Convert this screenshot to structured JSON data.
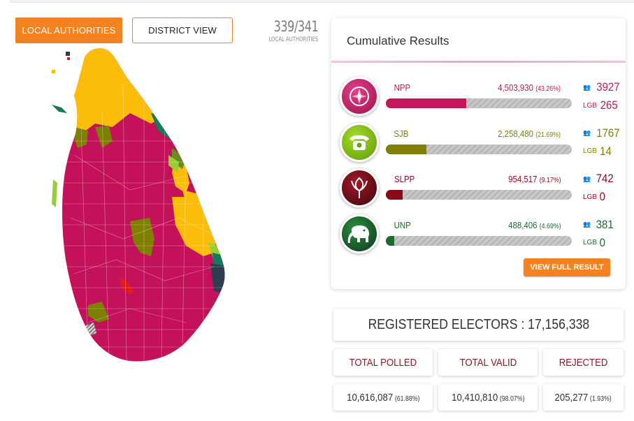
{
  "nav": {
    "local_label": "LOCAL AUTHORITIES",
    "district_label": "DISTRICT VIEW"
  },
  "counter": {
    "value": "339/341",
    "label": "LOCAL AUTHORITIES"
  },
  "card": {
    "title": "Cumulative Results",
    "view_full_label": "VIEW FULL RESULT"
  },
  "parties": [
    {
      "name": "NPP",
      "votes": "4,503,930",
      "pct": "(43.26%)",
      "share": 43.26,
      "members": "3927",
      "lgb_label": "LGB",
      "lgb": "265",
      "color": "#c2185b",
      "icon": "compass-icon"
    },
    {
      "name": "SJB",
      "votes": "2,258,480",
      "pct": "(21.69%)",
      "share": 21.69,
      "members": "1767",
      "lgb_label": "LGB",
      "lgb": "14",
      "color": "#808000",
      "icon": "telephone-icon"
    },
    {
      "name": "SLPP",
      "votes": "954,517",
      "pct": "(9.17%)",
      "share": 9.17,
      "members": "742",
      "lgb_label": "LGB",
      "lgb": "0",
      "color": "#8b0a1a",
      "icon": "flower-bud-icon"
    },
    {
      "name": "UNP",
      "votes": "488,406",
      "pct": "(4.69%)",
      "share": 4.69,
      "members": "381",
      "lgb_label": "LGB",
      "lgb": "0",
      "color": "#1b6b2e",
      "icon": "elephant-icon"
    }
  ],
  "summary": {
    "registered": "REGISTERED ELECTORS : 17,156,338",
    "polled_label": "TOTAL POLLED",
    "valid_label": "TOTAL VALID",
    "rejected_label": "REJECTED",
    "polled_value": "10,616,087",
    "polled_pct": "(61.88%)",
    "valid_value": "10,410,810",
    "valid_pct": "(98.07%)",
    "rejected_value": "205,277",
    "rejected_pct": "(1.93%)"
  },
  "colors": {
    "accent": "#f58220",
    "npp": "#c2185b",
    "sjb": "#808000",
    "slpp": "#8b0a1a",
    "unp": "#1b6b2e",
    "map_tamil": "#fcbc0a",
    "map_teal": "#137a5a",
    "map_navy": "#2c3e50"
  }
}
